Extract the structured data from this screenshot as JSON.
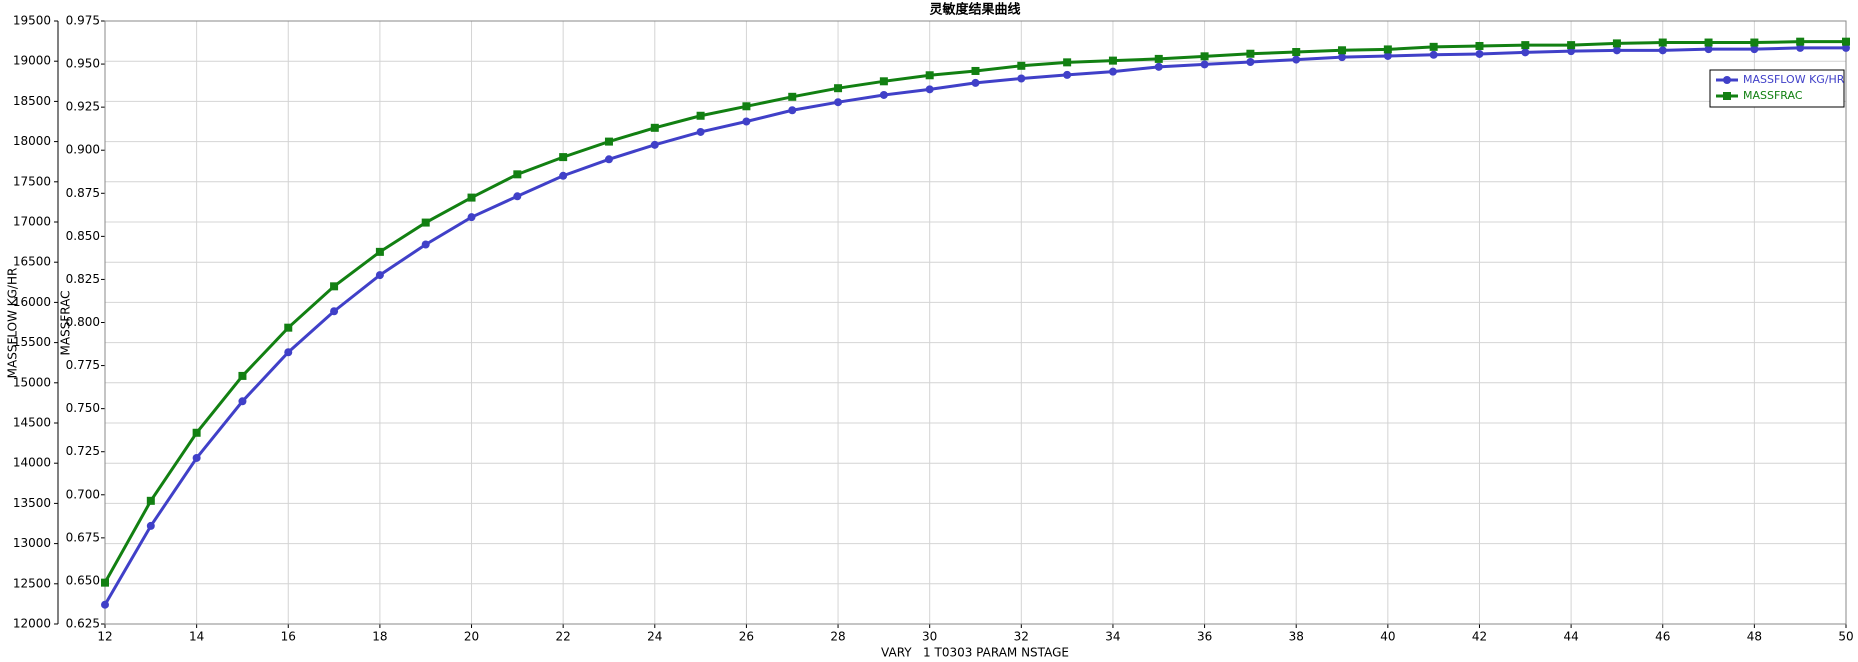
{
  "chart_data": {
    "type": "line",
    "title": "灵敏度结果曲线",
    "x_label": "VARY   1 T0303 PARAM NSTAGE",
    "y_label": "MASSFLOW KG/HR",
    "y2_label": "MASSFRAC",
    "x": [
      12,
      13,
      14,
      15,
      16,
      17,
      18,
      19,
      20,
      21,
      22,
      23,
      24,
      25,
      26,
      27,
      28,
      29,
      30,
      31,
      32,
      33,
      34,
      35,
      36,
      37,
      38,
      39,
      40,
      41,
      42,
      43,
      44,
      45,
      46,
      47,
      48,
      49,
      50
    ],
    "series": [
      {
        "name": "MASSFLOW KG/HR",
        "color": "#4040c8",
        "marker": "circle",
        "values": [
          12240,
          13220,
          14065,
          14770,
          15380,
          15890,
          16340,
          16720,
          17060,
          17320,
          17575,
          17780,
          17960,
          18120,
          18250,
          18390,
          18490,
          18580,
          18650,
          18730,
          18785,
          18830,
          18870,
          18930,
          18960,
          18990,
          19020,
          19050,
          19065,
          19080,
          19090,
          19110,
          19125,
          19135,
          19135,
          19150,
          19150,
          19165,
          19165
        ]
      },
      {
        "name": "MASSFRAC",
        "color": "#128012",
        "marker": "square",
        "axis": "y2",
        "values": [
          0.649,
          0.6965,
          0.736,
          0.769,
          0.797,
          0.821,
          0.841,
          0.858,
          0.8725,
          0.886,
          0.896,
          0.905,
          0.913,
          0.92,
          0.9255,
          0.931,
          0.936,
          0.94,
          0.9435,
          0.946,
          0.949,
          0.951,
          0.952,
          0.953,
          0.9545,
          0.956,
          0.957,
          0.958,
          0.9585,
          0.96,
          0.9605,
          0.961,
          0.961,
          0.962,
          0.9625,
          0.9625,
          0.9625,
          0.963,
          0.963
        ]
      }
    ],
    "xlim": [
      12,
      50
    ],
    "xticks": [
      12,
      14,
      16,
      18,
      20,
      22,
      24,
      26,
      28,
      30,
      32,
      34,
      36,
      38,
      40,
      42,
      44,
      46,
      48,
      50
    ],
    "ylim": [
      12000,
      19500
    ],
    "yticks": [
      12000,
      12500,
      13000,
      13500,
      14000,
      14500,
      15000,
      15500,
      16000,
      16500,
      17000,
      17500,
      18000,
      18500,
      19000,
      19500
    ],
    "y2lim": [
      0.625,
      0.975
    ],
    "y2ticks": [
      0.625,
      {
        "value": 0.65,
        "label": "0.650"
      },
      0.675,
      {
        "value": 0.7,
        "label": "0.700"
      },
      0.725,
      {
        "value": 0.75,
        "label": "0.750"
      },
      0.775,
      {
        "value": 0.8,
        "label": "0.800"
      },
      0.825,
      {
        "value": 0.85,
        "label": "0.850"
      },
      0.875,
      {
        "value": 0.9,
        "label": "0.900"
      },
      0.925,
      {
        "value": 0.95,
        "label": "0.950"
      },
      0.975
    ],
    "grid": true,
    "legend": "top-right"
  }
}
